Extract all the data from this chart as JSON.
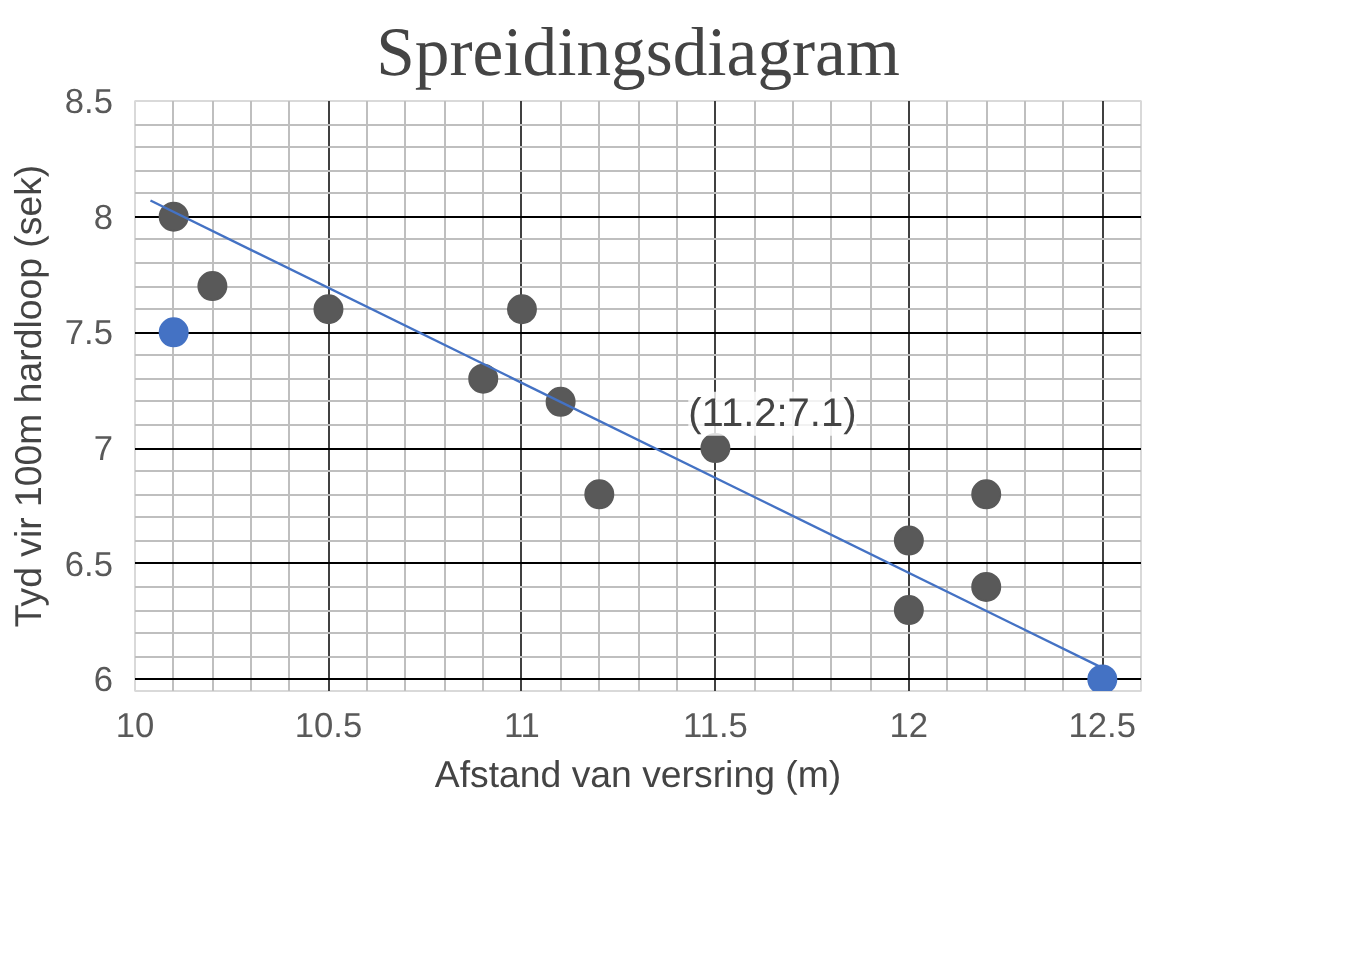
{
  "chart_data": {
    "type": "scatter",
    "title": "Spreidingsdiagram",
    "xlabel": "Afstand van versring (m)",
    "ylabel": "Tyd vir 100m hardloop (sek)",
    "xlim": [
      10,
      12.6
    ],
    "ylim": [
      5.95,
      8.5
    ],
    "xticks": [
      10,
      10.5,
      11,
      11.5,
      12,
      12.5
    ],
    "yticks": [
      6,
      6.5,
      7,
      7.5,
      8,
      8.5
    ],
    "grid": true,
    "annotations": [
      "(11.2:7.1)"
    ],
    "series": [
      {
        "type": "scatter",
        "color": "#595959",
        "x": [
          10.1,
          10.2,
          10.5,
          10.9,
          11.0,
          11.1,
          11.2,
          11.5,
          12.0,
          12.0,
          12.2,
          12.2
        ],
        "values": [
          8.0,
          7.7,
          7.6,
          7.3,
          7.6,
          7.2,
          6.8,
          7.0,
          6.6,
          6.3,
          6.8,
          6.4
        ]
      },
      {
        "type": "scatter",
        "color": "#4472c4",
        "x": [
          10.1,
          12.5
        ],
        "values": [
          7.5,
          6.0
        ]
      },
      {
        "type": "line",
        "color": "#4472c4",
        "x": [
          10.04,
          12.5
        ],
        "values": [
          8.07,
          6.05
        ]
      }
    ]
  }
}
